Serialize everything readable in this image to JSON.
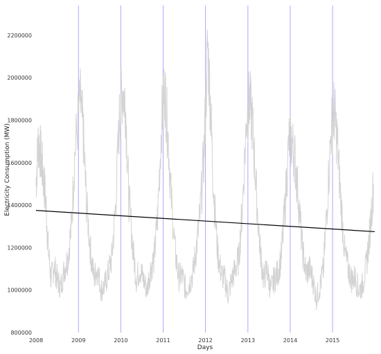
{
  "chart_data": {
    "type": "line",
    "xlabel": "Days",
    "ylabel": "Electricity Consumption (MW)",
    "xlim": [
      "2008-01-01",
      "2015-12-31"
    ],
    "ylim": [
      800000,
      2340000
    ],
    "x_ticks": [
      "2008",
      "2009",
      "2010",
      "2011",
      "2012",
      "2013",
      "2014",
      "2015"
    ],
    "y_ticks": [
      "800000",
      "1000000",
      "1200000",
      "1400000",
      "1600000",
      "1800000",
      "2000000",
      "2200000"
    ],
    "year_markers": [
      "2009-01-01",
      "2010-01-01",
      "2011-01-01",
      "2012-01-01",
      "2013-01-01",
      "2014-01-01",
      "2015-01-01"
    ],
    "grid": false,
    "series": [
      {
        "role": "daily consumption",
        "color": "#d3d3d3",
        "points": [
          [
            "2008-01-01",
            1500000
          ],
          [
            "2008-01-20",
            1700000
          ],
          [
            "2008-02-10",
            1640000
          ],
          [
            "2008-03-01",
            1550000
          ],
          [
            "2008-03-25",
            1420000
          ],
          [
            "2008-04-15",
            1200000
          ],
          [
            "2008-05-10",
            1050000
          ],
          [
            "2008-06-05",
            1120000
          ],
          [
            "2008-07-01",
            1050000
          ],
          [
            "2008-08-01",
            1010000
          ],
          [
            "2008-09-01",
            1100000
          ],
          [
            "2008-10-01",
            1150000
          ],
          [
            "2008-11-01",
            1300000
          ],
          [
            "2008-12-01",
            1650000
          ],
          [
            "2009-01-15",
            1900000
          ],
          [
            "2009-02-10",
            1750000
          ],
          [
            "2009-03-10",
            1420000
          ],
          [
            "2009-04-15",
            1180000
          ],
          [
            "2009-05-15",
            1060000
          ],
          [
            "2009-06-15",
            1100000
          ],
          [
            "2009-07-15",
            1000000
          ],
          [
            "2009-08-15",
            1020000
          ],
          [
            "2009-09-15",
            1080000
          ],
          [
            "2009-10-15",
            1150000
          ],
          [
            "2009-11-15",
            1380000
          ],
          [
            "2009-12-20",
            1800000
          ],
          [
            "2010-01-15",
            1950000
          ],
          [
            "2010-02-10",
            1880000
          ],
          [
            "2010-03-10",
            1450000
          ],
          [
            "2010-04-15",
            1200000
          ],
          [
            "2010-05-15",
            1050000
          ],
          [
            "2010-06-15",
            1100000
          ],
          [
            "2010-07-15",
            1050000
          ],
          [
            "2010-08-15",
            1000000
          ],
          [
            "2010-09-15",
            1100000
          ],
          [
            "2010-10-15",
            1150000
          ],
          [
            "2010-11-15",
            1350000
          ],
          [
            "2010-12-20",
            1800000
          ],
          [
            "2011-01-15",
            1950000
          ],
          [
            "2011-02-10",
            1750000
          ],
          [
            "2011-03-10",
            1450000
          ],
          [
            "2011-04-15",
            1180000
          ],
          [
            "2011-05-15",
            1060000
          ],
          [
            "2011-06-15",
            1070000
          ],
          [
            "2011-07-15",
            1000000
          ],
          [
            "2011-08-15",
            1030000
          ],
          [
            "2011-09-15",
            1080000
          ],
          [
            "2011-10-15",
            1200000
          ],
          [
            "2011-11-15",
            1350000
          ],
          [
            "2011-12-20",
            1650000
          ],
          [
            "2012-01-20",
            2150000
          ],
          [
            "2012-02-15",
            1850000
          ],
          [
            "2012-03-10",
            1480000
          ],
          [
            "2012-04-15",
            1180000
          ],
          [
            "2012-05-15",
            1080000
          ],
          [
            "2012-06-15",
            1050000
          ],
          [
            "2012-07-15",
            980000
          ],
          [
            "2012-08-15",
            1050000
          ],
          [
            "2012-09-15",
            1100000
          ],
          [
            "2012-10-15",
            1150000
          ],
          [
            "2012-11-15",
            1400000
          ],
          [
            "2012-12-20",
            1800000
          ],
          [
            "2013-01-15",
            1900000
          ],
          [
            "2013-02-10",
            1780000
          ],
          [
            "2013-03-10",
            1500000
          ],
          [
            "2013-04-15",
            1200000
          ],
          [
            "2013-05-15",
            1050000
          ],
          [
            "2013-06-15",
            1100000
          ],
          [
            "2013-07-15",
            1000000
          ],
          [
            "2013-08-15",
            1050000
          ],
          [
            "2013-09-15",
            1080000
          ],
          [
            "2013-10-15",
            1150000
          ],
          [
            "2013-11-15",
            1380000
          ],
          [
            "2013-12-20",
            1700000
          ],
          [
            "2014-01-15",
            1700000
          ],
          [
            "2014-02-10",
            1620000
          ],
          [
            "2014-03-10",
            1450000
          ],
          [
            "2014-04-15",
            1200000
          ],
          [
            "2014-05-15",
            1080000
          ],
          [
            "2014-06-15",
            1100000
          ],
          [
            "2014-07-15",
            1050000
          ],
          [
            "2014-08-15",
            960000
          ],
          [
            "2014-09-15",
            1020000
          ],
          [
            "2014-10-15",
            1100000
          ],
          [
            "2014-11-15",
            1400000
          ],
          [
            "2014-12-20",
            1750000
          ],
          [
            "2015-01-15",
            1850000
          ],
          [
            "2015-02-10",
            1700000
          ],
          [
            "2015-03-10",
            1450000
          ],
          [
            "2015-04-15",
            1180000
          ],
          [
            "2015-05-15",
            1100000
          ],
          [
            "2015-06-15",
            1050000
          ],
          [
            "2015-07-15",
            1060000
          ],
          [
            "2015-08-15",
            1000000
          ],
          [
            "2015-09-15",
            1020000
          ],
          [
            "2015-10-15",
            1100000
          ],
          [
            "2015-11-15",
            1250000
          ],
          [
            "2015-12-20",
            1500000
          ]
        ]
      },
      {
        "role": "linear trend",
        "color": "#000000",
        "points": [
          [
            "2008-01-01",
            1375000
          ],
          [
            "2015-12-31",
            1275000
          ]
        ]
      }
    ]
  },
  "colors": {
    "background": "#ffffff",
    "consumption": "#d3d3d3",
    "trend": "#000000",
    "year_markers": "#a8a8ff"
  }
}
